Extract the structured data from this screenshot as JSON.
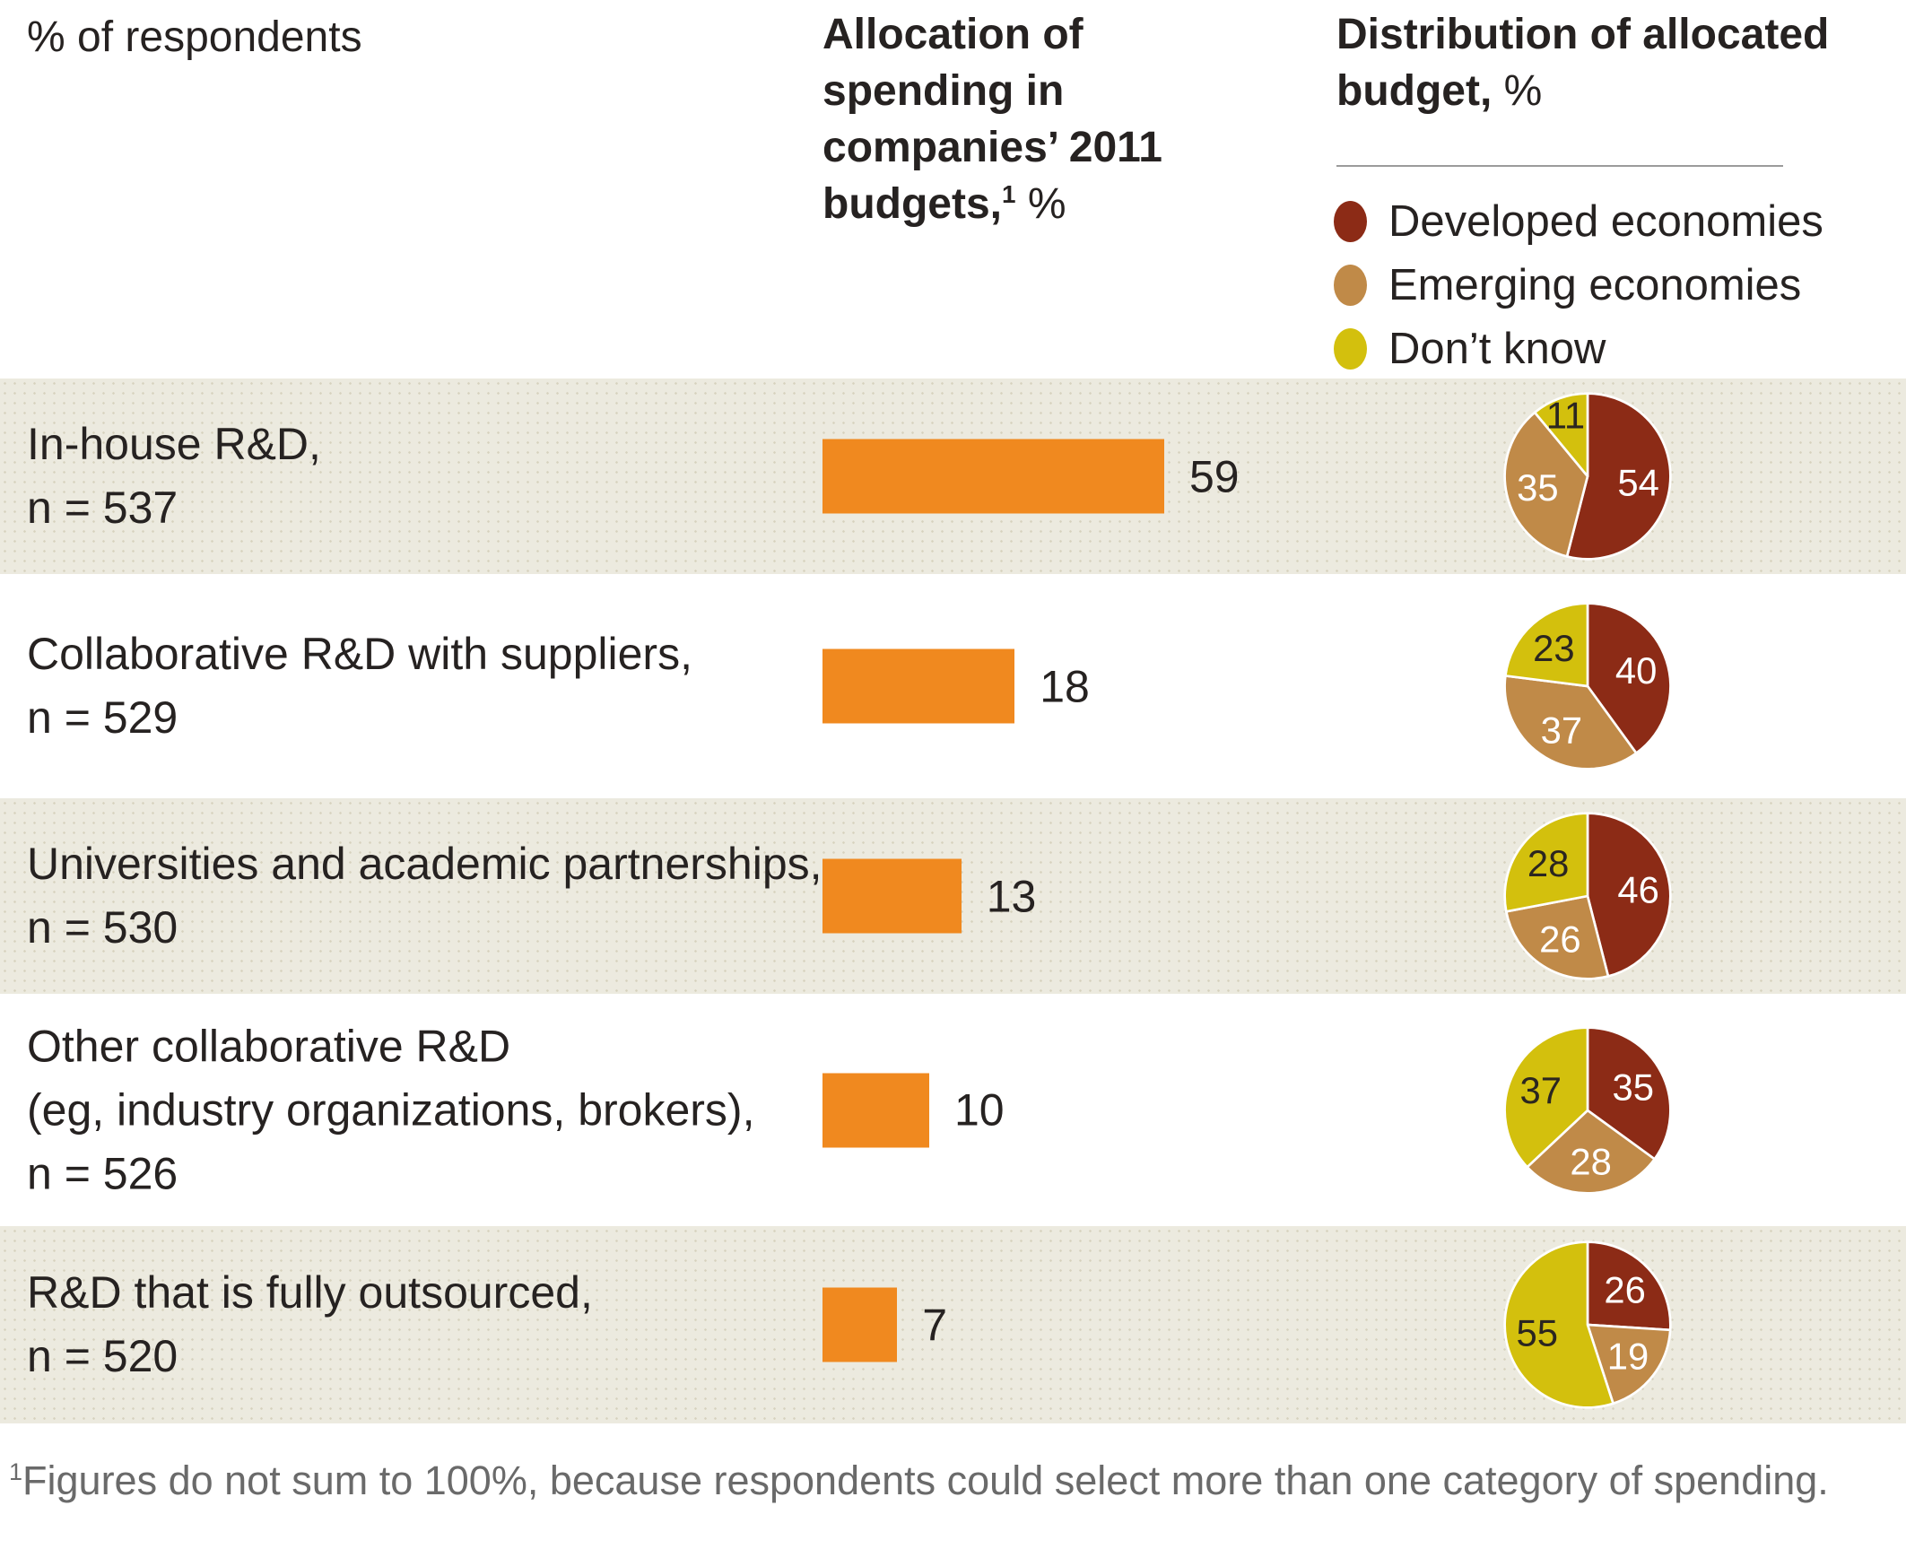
{
  "headers": {
    "left": "% of respondents",
    "bar": {
      "bold": "Allocation of\nspending in\ncompanies’ 2011\nbudgets,",
      "sup": "1",
      "unit": " %"
    },
    "pie": {
      "bold": "Distribution of allocated\nbudget,",
      "unit": " %"
    }
  },
  "legend": [
    {
      "key": "developed",
      "label": "Developed economies",
      "color": "#8C2B16"
    },
    {
      "key": "emerging",
      "label": "Emerging economies",
      "color": "#C08A48"
    },
    {
      "key": "dont_know",
      "label": "Don’t know",
      "color": "#D3C00D"
    }
  ],
  "colors": {
    "bar_orange": "#F0891F",
    "developed": "#8C2B16",
    "emerging": "#C08A48",
    "dont_know": "#D3C00D",
    "row_beige": "#ECEADF",
    "text": "#262221",
    "footnote_gray": "#6a6a6a",
    "divider_gray": "#9b9b9b",
    "pie_label_light": "#ffffff",
    "pie_label_dark": "#2b2620"
  },
  "chart_data": {
    "type": "bar+pie",
    "unit": "%",
    "bar_axis_title": "Allocation of spending in companies’ 2011 budgets, %",
    "pie_title": "Distribution of allocated budget, %",
    "slice_keys": [
      "developed",
      "emerging",
      "dont_know"
    ],
    "rows": [
      {
        "category": "In-house R&D",
        "n": 537,
        "label_lines": [
          "In-house R&D,",
          "n = 537"
        ],
        "bar": 59,
        "pie": {
          "developed": 54,
          "emerging": 35,
          "dont_know": 11
        }
      },
      {
        "category": "Collaborative R&D with suppliers",
        "n": 529,
        "label_lines": [
          "Collaborative R&D with suppliers,",
          "n = 529"
        ],
        "bar": 18,
        "pie": {
          "developed": 40,
          "emerging": 37,
          "dont_know": 23
        }
      },
      {
        "category": "Universities and academic partnerships",
        "n": 530,
        "label_lines": [
          "Universities and academic partnerships,",
          "n = 530"
        ],
        "bar": 13,
        "pie": {
          "developed": 46,
          "emerging": 26,
          "dont_know": 28
        }
      },
      {
        "category": "Other collaborative R&D (eg, industry organizations, brokers)",
        "n": 526,
        "label_lines": [
          "Other collaborative R&D",
          "(eg, industry organizations, brokers),",
          "n = 526"
        ],
        "bar": 10,
        "pie": {
          "developed": 35,
          "emerging": 28,
          "dont_know": 37
        }
      },
      {
        "category": "R&D that is fully outsourced",
        "n": 520,
        "label_lines": [
          "R&D that is fully outsourced,",
          "n = 520"
        ],
        "bar": 7,
        "pie": {
          "developed": 26,
          "emerging": 19,
          "dont_know": 55
        }
      }
    ]
  },
  "footnote": {
    "sup": "1",
    "text": "Figures do not sum to 100%, because respondents could select more than one category of spending."
  }
}
